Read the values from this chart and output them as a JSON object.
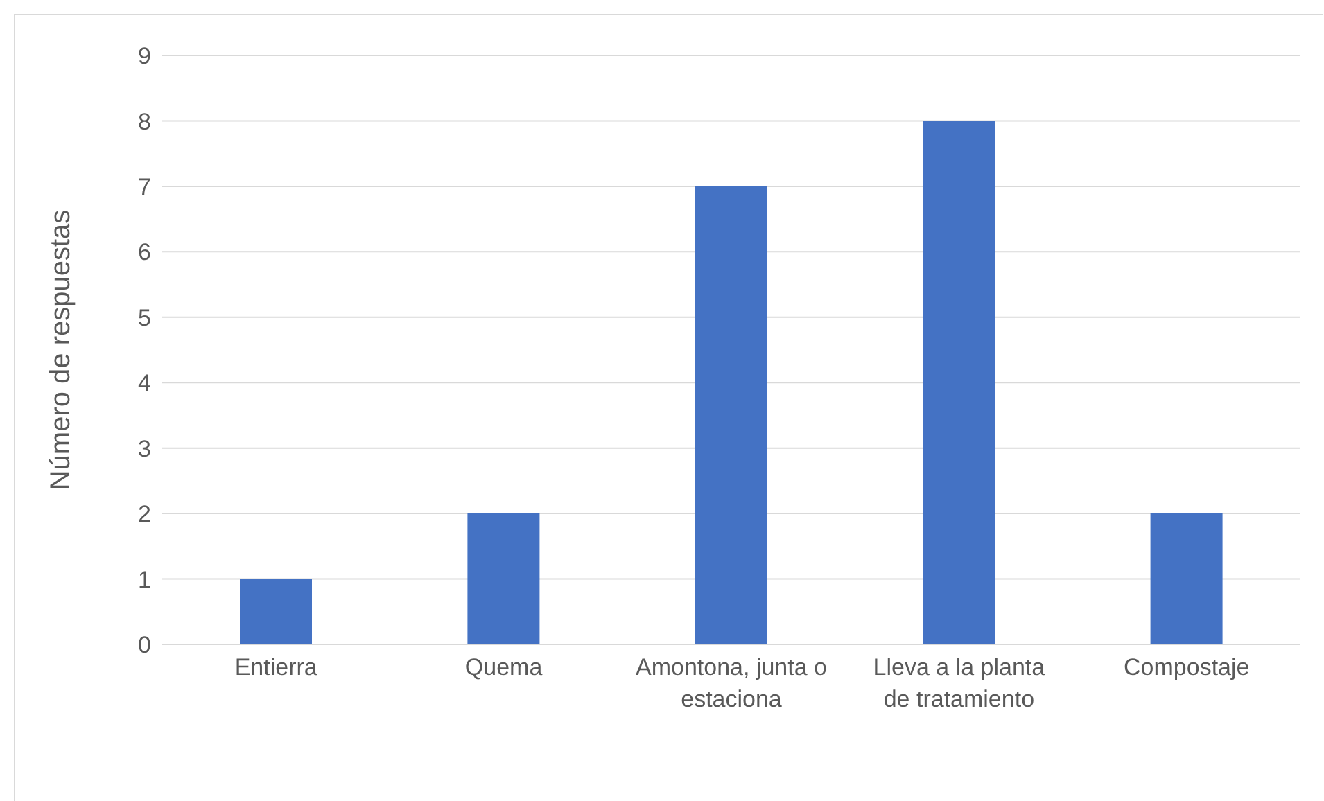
{
  "chart_data": {
    "type": "bar",
    "ylabel": "Número de respuestas",
    "categories": [
      "Entierra",
      "Quema",
      "Amontona, junta o estaciona",
      "Lleva a la planta de tratamiento",
      "Compostaje"
    ],
    "values": [
      1,
      2,
      7,
      8,
      2
    ],
    "color": "#4472c4",
    "ylim": [
      0,
      9
    ],
    "yticks": [
      0,
      1,
      2,
      3,
      4,
      5,
      6,
      7,
      8,
      9
    ],
    "grid": "y"
  }
}
